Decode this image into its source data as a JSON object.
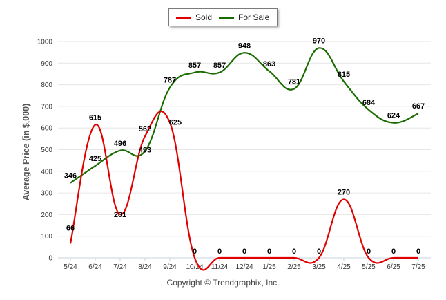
{
  "chart_data": {
    "type": "line",
    "categories": [
      "5/24",
      "6/24",
      "7/24",
      "8/24",
      "9/24",
      "10/24",
      "11/24",
      "12/24",
      "1/25",
      "2/25",
      "3/25",
      "4/25",
      "5/25",
      "6/25",
      "7/25"
    ],
    "series": [
      {
        "name": "Sold",
        "color": "#e00000",
        "values": [
          66,
          615,
          201,
          562,
          625,
          0,
          0,
          0,
          0,
          0,
          0,
          270,
          0,
          0,
          0
        ]
      },
      {
        "name": "For Sale",
        "color": "#1a6b00",
        "values": [
          346,
          425,
          496,
          493,
          787,
          857,
          857,
          948,
          863,
          781,
          970,
          815,
          684,
          624,
          667
        ]
      }
    ],
    "ylabel": "Average Price (in $,000)",
    "ylim": [
      0,
      1000
    ],
    "yticks": [
      0,
      100,
      200,
      300,
      400,
      500,
      600,
      700,
      800,
      900,
      1000
    ],
    "grid": true,
    "legend": "top-center",
    "footer": "Copyright © Trendgraphix, Inc."
  }
}
